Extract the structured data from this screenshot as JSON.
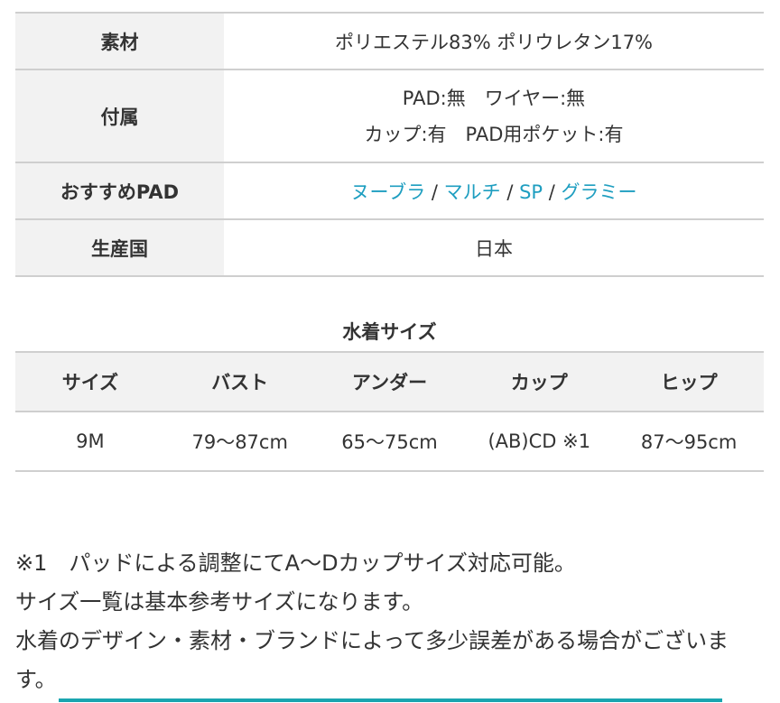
{
  "spec_table": [
    {
      "label": "素材",
      "lines": [
        "ポリエステル83% ポリウレタン17%"
      ]
    },
    {
      "label": "付属",
      "lines": [
        "PAD:無　ワイヤー:無",
        "カップ:有　PAD用ポケット:有"
      ]
    },
    {
      "label": "おすすめPAD",
      "links": [
        "ヌーブラ",
        "マルチ",
        "SP",
        "グラミー"
      ],
      "separator": " / "
    },
    {
      "label": "生産国",
      "lines": [
        "日本"
      ]
    }
  ],
  "link_color": "#1e9ec0",
  "size_table": {
    "caption": "水着サイズ",
    "headers": [
      "サイズ",
      "バスト",
      "アンダー",
      "カップ",
      "ヒップ"
    ],
    "rows": [
      [
        "9M",
        "79〜87cm",
        "65〜75cm",
        "(AB)CD ※1",
        "87〜95cm"
      ]
    ]
  },
  "notes": [
    "※1　パッドによる調整にてA〜Dカップサイズ対応可能。",
    "サイズ一覧は基本参考サイズになります。",
    "水着のデザイン・素材・ブランドによって多少誤差がある場合がございます。"
  ],
  "accent_color": "#1aa5b0"
}
